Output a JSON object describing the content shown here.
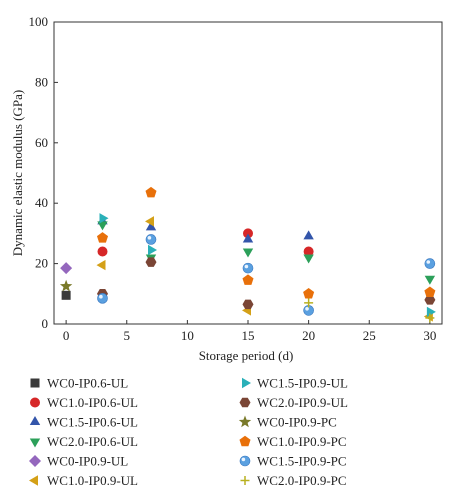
{
  "chart_data": {
    "type": "scatter",
    "xlabel": "Storage period (d)",
    "ylabel": "Dynamic elastic modulus (GPa)",
    "xlim": [
      -1,
      31
    ],
    "ylim": [
      0,
      100
    ],
    "xticks": [
      0,
      5,
      10,
      15,
      20,
      25,
      30
    ],
    "yticks": [
      0,
      20,
      40,
      60,
      80,
      100
    ],
    "grid": false,
    "legend_placement": "bottom",
    "series": [
      {
        "name": "WC0-IP0.6-UL",
        "marker": "square",
        "color": "#3a3a3a",
        "points": [
          {
            "x": 0,
            "y": 9.5
          }
        ]
      },
      {
        "name": "WC1.0-IP0.6-UL",
        "marker": "circle",
        "color": "#d62728",
        "points": [
          {
            "x": 3,
            "y": 24
          },
          {
            "x": 15,
            "y": 30
          },
          {
            "x": 20,
            "y": 24
          }
        ]
      },
      {
        "name": "WC1.5-IP0.6-UL",
        "marker": "triangle-up",
        "color": "#3355aa",
        "points": [
          {
            "x": 3,
            "y": 34
          },
          {
            "x": 7,
            "y": 32
          },
          {
            "x": 15,
            "y": 28
          },
          {
            "x": 20,
            "y": 29
          }
        ]
      },
      {
        "name": "WC2.0-IP0.6-UL",
        "marker": "triangle-down",
        "color": "#2ca05a",
        "points": [
          {
            "x": 3,
            "y": 33
          },
          {
            "x": 7,
            "y": 22
          },
          {
            "x": 15,
            "y": 24
          },
          {
            "x": 20,
            "y": 22
          },
          {
            "x": 30,
            "y": 15
          }
        ]
      },
      {
        "name": "WC0-IP0.9-UL",
        "marker": "diamond",
        "color": "#9467bd",
        "points": [
          {
            "x": 0,
            "y": 18.5
          }
        ]
      },
      {
        "name": "WC1.0-IP0.9-UL",
        "marker": "triangle-left",
        "color": "#d4a017",
        "points": [
          {
            "x": 3,
            "y": 19.5
          },
          {
            "x": 7,
            "y": 34
          },
          {
            "x": 15,
            "y": 4.5
          },
          {
            "x": 30,
            "y": 2.5
          }
        ]
      },
      {
        "name": "WC1.5-IP0.9-UL",
        "marker": "triangle-right",
        "color": "#2ab0b8",
        "points": [
          {
            "x": 3,
            "y": 35
          },
          {
            "x": 7,
            "y": 24.5
          },
          {
            "x": 30,
            "y": 4
          }
        ]
      },
      {
        "name": "WC2.0-IP0.9-UL",
        "marker": "hexagon",
        "color": "#7a4535",
        "points": [
          {
            "x": 3,
            "y": 10
          },
          {
            "x": 7,
            "y": 20.5
          },
          {
            "x": 15,
            "y": 6.5
          },
          {
            "x": 30,
            "y": 8
          }
        ]
      },
      {
        "name": "WC0-IP0.9-PC",
        "marker": "star",
        "color": "#7a7a2a",
        "points": [
          {
            "x": 0,
            "y": 12.5
          }
        ]
      },
      {
        "name": "WC1.0-IP0.9-PC",
        "marker": "pentagon",
        "color": "#e8700a",
        "points": [
          {
            "x": 3,
            "y": 28.5
          },
          {
            "x": 7,
            "y": 43.5
          },
          {
            "x": 15,
            "y": 14.5
          },
          {
            "x": 20,
            "y": 10
          },
          {
            "x": 30,
            "y": 10.5
          }
        ]
      },
      {
        "name": "WC1.5-IP0.9-PC",
        "marker": "sphere",
        "color": "#5aa0e0",
        "points": [
          {
            "x": 3,
            "y": 8.5
          },
          {
            "x": 7,
            "y": 28
          },
          {
            "x": 15,
            "y": 18.5
          },
          {
            "x": 20,
            "y": 4.5
          },
          {
            "x": 30,
            "y": 20
          }
        ]
      },
      {
        "name": "WC2.0-IP0.9-PC",
        "marker": "plus",
        "color": "#b8b020",
        "points": [
          {
            "x": 20,
            "y": 7
          },
          {
            "x": 30,
            "y": 2
          }
        ]
      }
    ]
  }
}
